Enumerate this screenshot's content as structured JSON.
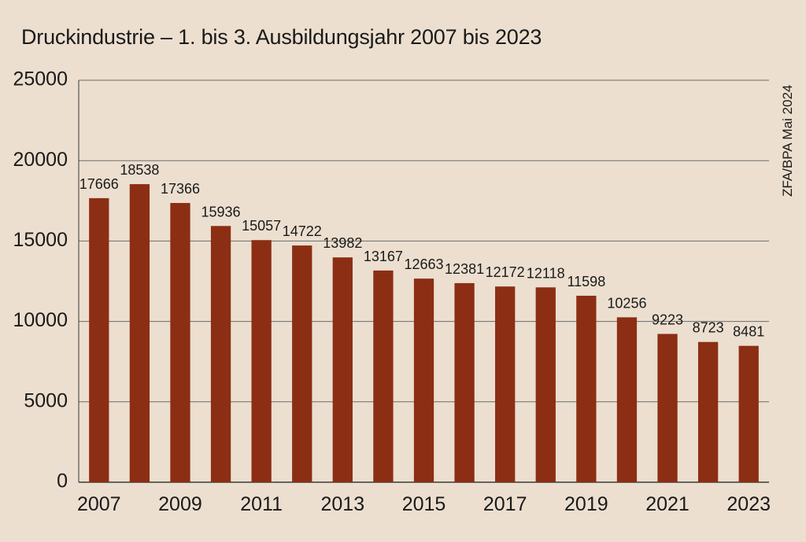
{
  "chart_data": {
    "type": "bar",
    "title": "Druckindustrie – 1. bis 3. Ausbildungsjahr 2007 bis 2023",
    "categories": [
      "2007",
      "2008",
      "2009",
      "2010",
      "2011",
      "2012",
      "2013",
      "2014",
      "2015",
      "2016",
      "2017",
      "2018",
      "2019",
      "2020",
      "2021",
      "2022",
      "2023"
    ],
    "values": [
      17666,
      18538,
      17366,
      15936,
      15057,
      14722,
      13982,
      13167,
      12663,
      12381,
      12172,
      12118,
      11598,
      10256,
      9223,
      8723,
      8481
    ],
    "x_tick_labels": [
      "2007",
      "2009",
      "2011",
      "2013",
      "2015",
      "2017",
      "2019",
      "2021",
      "2023"
    ],
    "y_ticks": [
      0,
      5000,
      10000,
      15000,
      20000,
      25000
    ],
    "ylim": [
      0,
      25000
    ],
    "xlabel": "",
    "ylabel": "",
    "grid": true,
    "bar_color": "#8b2e14",
    "grid_color": "#6b6b6b",
    "background_color": "#ecdfcf",
    "source_note": "ZFA/BPA Mai 2024"
  }
}
